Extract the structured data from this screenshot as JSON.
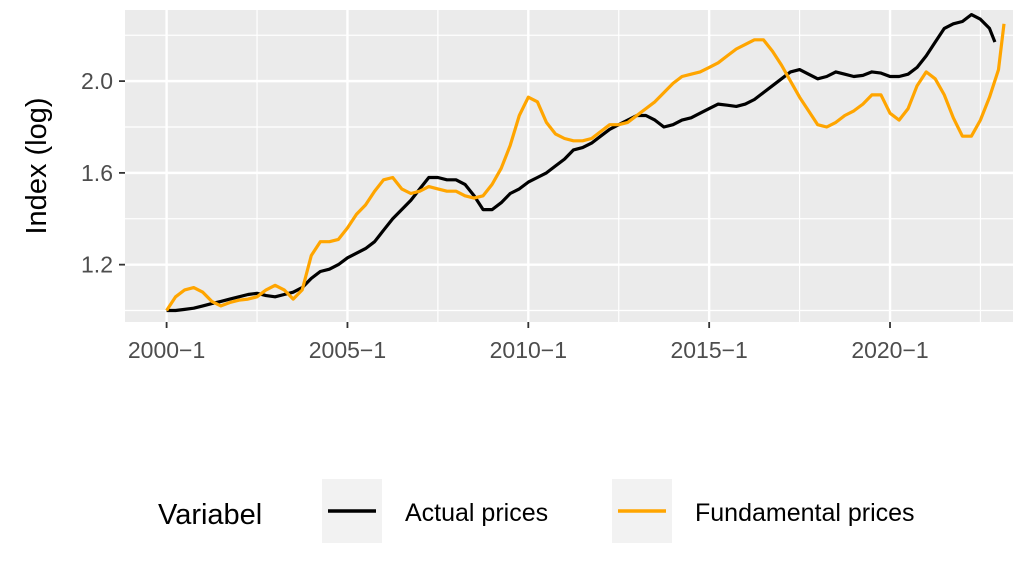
{
  "chart_data": {
    "type": "line",
    "title": "",
    "xlabel": "",
    "ylabel": "Index (log)",
    "x_tick_labels": [
      "2000−1",
      "2005−1",
      "2010−1",
      "2015−1",
      "2020−1"
    ],
    "y_tick_labels": [
      "1.2",
      "1.6",
      "2.0"
    ],
    "y_ticks": [
      1.2,
      1.6,
      2.0
    ],
    "x_ticks": [
      2000,
      2005,
      2010,
      2015,
      2020
    ],
    "xlim": [
      1998.85,
      2023.4
    ],
    "ylim": [
      0.95,
      2.31
    ],
    "grid": true,
    "legend": {
      "title": "Variabel",
      "position": "bottom"
    },
    "series": [
      {
        "name": "Actual prices",
        "color": "#000000",
        "points": [
          [
            2000.0,
            1.0
          ],
          [
            2000.25,
            1.0
          ],
          [
            2000.5,
            1.005
          ],
          [
            2000.75,
            1.01
          ],
          [
            2001.0,
            1.02
          ],
          [
            2001.25,
            1.03
          ],
          [
            2001.5,
            1.04
          ],
          [
            2001.75,
            1.05
          ],
          [
            2002.0,
            1.06
          ],
          [
            2002.25,
            1.07
          ],
          [
            2002.5,
            1.075
          ],
          [
            2002.75,
            1.065
          ],
          [
            2003.0,
            1.06
          ],
          [
            2003.25,
            1.07
          ],
          [
            2003.5,
            1.08
          ],
          [
            2003.75,
            1.1
          ],
          [
            2004.0,
            1.14
          ],
          [
            2004.25,
            1.17
          ],
          [
            2004.5,
            1.18
          ],
          [
            2004.75,
            1.2
          ],
          [
            2005.0,
            1.23
          ],
          [
            2005.25,
            1.25
          ],
          [
            2005.5,
            1.27
          ],
          [
            2005.75,
            1.3
          ],
          [
            2006.0,
            1.35
          ],
          [
            2006.25,
            1.4
          ],
          [
            2006.5,
            1.44
          ],
          [
            2006.75,
            1.48
          ],
          [
            2007.0,
            1.53
          ],
          [
            2007.25,
            1.58
          ],
          [
            2007.5,
            1.58
          ],
          [
            2007.75,
            1.57
          ],
          [
            2008.0,
            1.57
          ],
          [
            2008.25,
            1.55
          ],
          [
            2008.5,
            1.5
          ],
          [
            2008.75,
            1.44
          ],
          [
            2009.0,
            1.44
          ],
          [
            2009.25,
            1.47
          ],
          [
            2009.5,
            1.51
          ],
          [
            2009.75,
            1.53
          ],
          [
            2010.0,
            1.56
          ],
          [
            2010.25,
            1.58
          ],
          [
            2010.5,
            1.6
          ],
          [
            2010.75,
            1.63
          ],
          [
            2011.0,
            1.66
          ],
          [
            2011.25,
            1.7
          ],
          [
            2011.5,
            1.71
          ],
          [
            2011.75,
            1.73
          ],
          [
            2012.0,
            1.76
          ],
          [
            2012.25,
            1.79
          ],
          [
            2012.5,
            1.81
          ],
          [
            2012.75,
            1.83
          ],
          [
            2013.0,
            1.85
          ],
          [
            2013.25,
            1.85
          ],
          [
            2013.5,
            1.83
          ],
          [
            2013.75,
            1.8
          ],
          [
            2014.0,
            1.81
          ],
          [
            2014.25,
            1.83
          ],
          [
            2014.5,
            1.84
          ],
          [
            2014.75,
            1.86
          ],
          [
            2015.0,
            1.88
          ],
          [
            2015.25,
            1.9
          ],
          [
            2015.5,
            1.895
          ],
          [
            2015.75,
            1.89
          ],
          [
            2016.0,
            1.9
          ],
          [
            2016.25,
            1.92
          ],
          [
            2016.5,
            1.95
          ],
          [
            2016.75,
            1.98
          ],
          [
            2017.0,
            2.01
          ],
          [
            2017.25,
            2.04
          ],
          [
            2017.5,
            2.05
          ],
          [
            2017.75,
            2.03
          ],
          [
            2018.0,
            2.01
          ],
          [
            2018.25,
            2.02
          ],
          [
            2018.5,
            2.04
          ],
          [
            2018.75,
            2.03
          ],
          [
            2019.0,
            2.02
          ],
          [
            2019.25,
            2.025
          ],
          [
            2019.5,
            2.04
          ],
          [
            2019.75,
            2.035
          ],
          [
            2020.0,
            2.02
          ],
          [
            2020.25,
            2.02
          ],
          [
            2020.5,
            2.03
          ],
          [
            2020.75,
            2.06
          ],
          [
            2021.0,
            2.11
          ],
          [
            2021.25,
            2.17
          ],
          [
            2021.5,
            2.23
          ],
          [
            2021.75,
            2.25
          ],
          [
            2022.0,
            2.26
          ],
          [
            2022.25,
            2.29
          ],
          [
            2022.5,
            2.27
          ],
          [
            2022.75,
            2.23
          ],
          [
            2022.9,
            2.17
          ]
        ]
      },
      {
        "name": "Fundamental prices",
        "color": "#ffa500",
        "points": [
          [
            2000.0,
            1.0
          ],
          [
            2000.25,
            1.06
          ],
          [
            2000.5,
            1.09
          ],
          [
            2000.75,
            1.1
          ],
          [
            2001.0,
            1.08
          ],
          [
            2001.25,
            1.04
          ],
          [
            2001.5,
            1.02
          ],
          [
            2001.75,
            1.035
          ],
          [
            2002.0,
            1.045
          ],
          [
            2002.25,
            1.05
          ],
          [
            2002.5,
            1.06
          ],
          [
            2002.75,
            1.09
          ],
          [
            2003.0,
            1.11
          ],
          [
            2003.25,
            1.09
          ],
          [
            2003.5,
            1.05
          ],
          [
            2003.75,
            1.09
          ],
          [
            2004.0,
            1.24
          ],
          [
            2004.25,
            1.3
          ],
          [
            2004.5,
            1.3
          ],
          [
            2004.75,
            1.31
          ],
          [
            2005.0,
            1.36
          ],
          [
            2005.25,
            1.42
          ],
          [
            2005.5,
            1.46
          ],
          [
            2005.75,
            1.52
          ],
          [
            2006.0,
            1.57
          ],
          [
            2006.25,
            1.58
          ],
          [
            2006.5,
            1.53
          ],
          [
            2006.75,
            1.51
          ],
          [
            2007.0,
            1.52
          ],
          [
            2007.25,
            1.54
          ],
          [
            2007.5,
            1.53
          ],
          [
            2007.75,
            1.52
          ],
          [
            2008.0,
            1.52
          ],
          [
            2008.25,
            1.5
          ],
          [
            2008.5,
            1.49
          ],
          [
            2008.75,
            1.5
          ],
          [
            2009.0,
            1.55
          ],
          [
            2009.25,
            1.62
          ],
          [
            2009.5,
            1.72
          ],
          [
            2009.75,
            1.85
          ],
          [
            2010.0,
            1.93
          ],
          [
            2010.25,
            1.91
          ],
          [
            2010.5,
            1.82
          ],
          [
            2010.75,
            1.77
          ],
          [
            2011.0,
            1.75
          ],
          [
            2011.25,
            1.74
          ],
          [
            2011.5,
            1.74
          ],
          [
            2011.75,
            1.75
          ],
          [
            2012.0,
            1.78
          ],
          [
            2012.25,
            1.81
          ],
          [
            2012.5,
            1.81
          ],
          [
            2012.75,
            1.82
          ],
          [
            2013.0,
            1.85
          ],
          [
            2013.25,
            1.88
          ],
          [
            2013.5,
            1.91
          ],
          [
            2013.75,
            1.95
          ],
          [
            2014.0,
            1.99
          ],
          [
            2014.25,
            2.02
          ],
          [
            2014.5,
            2.03
          ],
          [
            2014.75,
            2.04
          ],
          [
            2015.0,
            2.06
          ],
          [
            2015.25,
            2.08
          ],
          [
            2015.5,
            2.11
          ],
          [
            2015.75,
            2.14
          ],
          [
            2016.0,
            2.16
          ],
          [
            2016.25,
            2.18
          ],
          [
            2016.5,
            2.18
          ],
          [
            2016.75,
            2.13
          ],
          [
            2017.0,
            2.07
          ],
          [
            2017.25,
            2.0
          ],
          [
            2017.5,
            1.93
          ],
          [
            2017.75,
            1.87
          ],
          [
            2018.0,
            1.81
          ],
          [
            2018.25,
            1.8
          ],
          [
            2018.5,
            1.82
          ],
          [
            2018.75,
            1.85
          ],
          [
            2019.0,
            1.87
          ],
          [
            2019.25,
            1.9
          ],
          [
            2019.5,
            1.94
          ],
          [
            2019.75,
            1.94
          ],
          [
            2020.0,
            1.86
          ],
          [
            2020.25,
            1.83
          ],
          [
            2020.5,
            1.88
          ],
          [
            2020.75,
            1.98
          ],
          [
            2021.0,
            2.04
          ],
          [
            2021.25,
            2.01
          ],
          [
            2021.5,
            1.94
          ],
          [
            2021.75,
            1.84
          ],
          [
            2022.0,
            1.76
          ],
          [
            2022.25,
            1.76
          ],
          [
            2022.5,
            1.83
          ],
          [
            2022.75,
            1.93
          ],
          [
            2023.0,
            2.05
          ],
          [
            2023.15,
            2.25
          ]
        ]
      }
    ]
  }
}
